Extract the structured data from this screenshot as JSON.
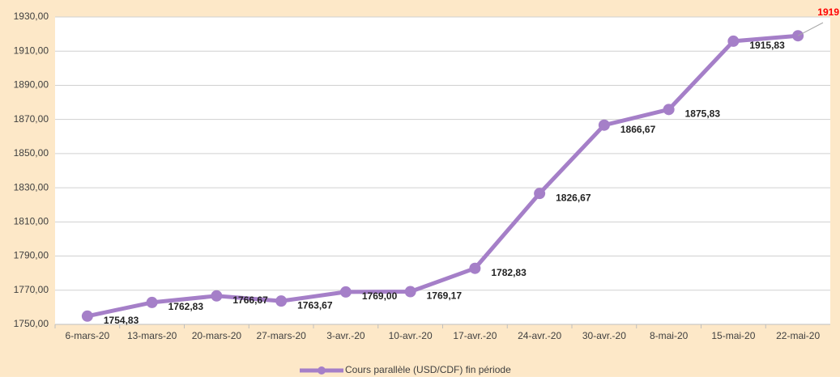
{
  "chart_data": {
    "type": "line",
    "categories": [
      "6-mars-20",
      "13-mars-20",
      "20-mars-20",
      "27-mars-20",
      "3-avr.-20",
      "10-avr.-20",
      "17-avr.-20",
      "24-avr.-20",
      "30-avr.-20",
      "8-mai-20",
      "15-mai-20",
      "22-mai-20"
    ],
    "series": [
      {
        "name": "Cours parallèle (USD/CDF) fin période",
        "color": "#a57fc8",
        "values": [
          1754.83,
          1762.83,
          1766.67,
          1763.67,
          1769.0,
          1769.17,
          1782.83,
          1826.67,
          1866.67,
          1875.83,
          1915.83,
          1919
        ],
        "value_labels": [
          "1754,83",
          "1762,83",
          "1766,67",
          "1763,67",
          "1769,00",
          "1769,17",
          "1782,83",
          "1826,67",
          "1866,67",
          "1875,83",
          "1915,83",
          "1919"
        ]
      }
    ],
    "ylim": [
      1750,
      1930
    ],
    "yticks": [
      {
        "value": 1750,
        "label": "1750,00"
      },
      {
        "value": 1770,
        "label": "1770,00"
      },
      {
        "value": 1790,
        "label": "1790,00"
      },
      {
        "value": 1810,
        "label": "1810,00"
      },
      {
        "value": 1830,
        "label": "1830,00"
      },
      {
        "value": 1850,
        "label": "1850,00"
      },
      {
        "value": 1870,
        "label": "1870,00"
      },
      {
        "value": 1890,
        "label": "1890,00"
      },
      {
        "value": 1910,
        "label": "1910,00"
      },
      {
        "value": 1930,
        "label": "1930,00"
      }
    ],
    "grid": true,
    "legend": "bottom"
  }
}
